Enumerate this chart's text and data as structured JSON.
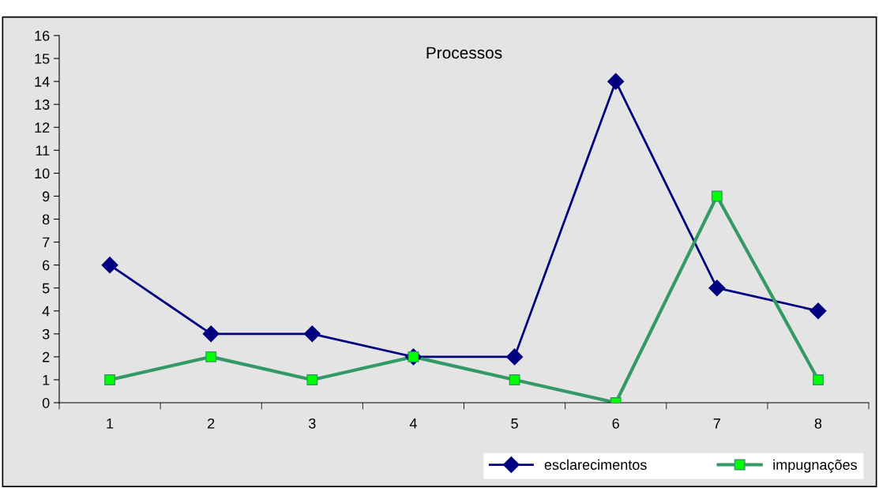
{
  "chart_data": {
    "type": "line",
    "title": "Processos",
    "categories": [
      "1",
      "2",
      "3",
      "4",
      "5",
      "6",
      "7",
      "8"
    ],
    "series": [
      {
        "name": "esclarecimentos",
        "color": "#000080",
        "marker": "diamond",
        "values": [
          6,
          3,
          3,
          2,
          2,
          14,
          5,
          4
        ]
      },
      {
        "name": "impugnações",
        "color": "#339966",
        "colors": [
          "#00ff00",
          "#00ff00",
          "#00ff00",
          "#00ff00",
          "#00ff00",
          "#00ff00",
          "#00ff00",
          "#00ff00"
        ],
        "marker": "square",
        "values": [
          1,
          2,
          1,
          2,
          1,
          0,
          9,
          1
        ]
      }
    ],
    "ylim": [
      0,
      16
    ],
    "yticks": [
      0,
      1,
      2,
      3,
      4,
      5,
      6,
      7,
      8,
      9,
      10,
      11,
      12,
      13,
      14,
      15,
      16
    ],
    "grid": false,
    "legend": "bottom right"
  }
}
